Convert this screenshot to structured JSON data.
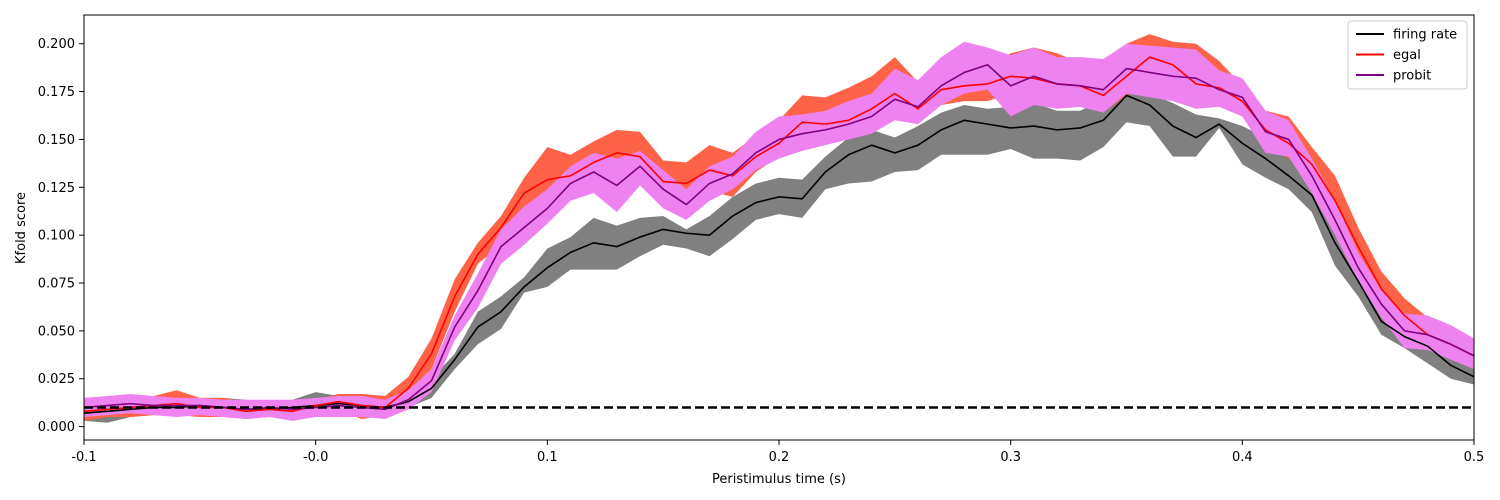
{
  "chart_data": {
    "type": "line",
    "title": "",
    "xlabel": "Peristimulus time (s)",
    "ylabel": "Kfold score",
    "xlim": [
      -0.1,
      0.5
    ],
    "ylim": [
      -0.007,
      0.215
    ],
    "xticks": [
      -0.1,
      0.0,
      0.1,
      0.2,
      0.3,
      0.4,
      0.5
    ],
    "xtick_labels": [
      "-0.1",
      "-0.0",
      "0.1",
      "0.2",
      "0.3",
      "0.4",
      "0.5"
    ],
    "yticks": [
      0.0,
      0.025,
      0.05,
      0.075,
      0.1,
      0.125,
      0.15,
      0.175,
      0.2
    ],
    "ytick_labels": [
      "0.000",
      "0.025",
      "0.050",
      "0.075",
      "0.100",
      "0.125",
      "0.150",
      "0.175",
      "0.200"
    ],
    "grid": false,
    "legend_position": "top-right",
    "baseline": {
      "value": 0.01,
      "color": "#000000",
      "style": "dashed"
    },
    "x": [
      -0.1,
      -0.09,
      -0.08,
      -0.07,
      -0.06,
      -0.05,
      -0.04,
      -0.03,
      -0.02,
      -0.01,
      0.0,
      0.01,
      0.02,
      0.03,
      0.04,
      0.05,
      0.06,
      0.07,
      0.08,
      0.09,
      0.1,
      0.11,
      0.12,
      0.13,
      0.14,
      0.15,
      0.16,
      0.17,
      0.18,
      0.19,
      0.2,
      0.21,
      0.22,
      0.23,
      0.24,
      0.25,
      0.26,
      0.27,
      0.28,
      0.29,
      0.3,
      0.31,
      0.32,
      0.33,
      0.34,
      0.35,
      0.36,
      0.37,
      0.38,
      0.39,
      0.4,
      0.41,
      0.42,
      0.43,
      0.44,
      0.45,
      0.46,
      0.47,
      0.48,
      0.49,
      0.5
    ],
    "series": [
      {
        "name": "firing rate",
        "color": "#000000",
        "band_color": "#808080",
        "values": [
          0.007,
          0.008,
          0.009,
          0.01,
          0.01,
          0.011,
          0.01,
          0.009,
          0.009,
          0.01,
          0.011,
          0.012,
          0.011,
          0.01,
          0.013,
          0.02,
          0.035,
          0.052,
          0.06,
          0.073,
          0.083,
          0.091,
          0.096,
          0.094,
          0.099,
          0.103,
          0.101,
          0.1,
          0.11,
          0.117,
          0.12,
          0.119,
          0.133,
          0.142,
          0.147,
          0.143,
          0.147,
          0.155,
          0.16,
          0.158,
          0.156,
          0.157,
          0.155,
          0.156,
          0.16,
          0.173,
          0.168,
          0.157,
          0.151,
          0.158,
          0.148,
          0.14,
          0.131,
          0.121,
          0.096,
          0.076,
          0.055,
          0.047,
          0.042,
          0.032,
          0.026
        ],
        "lower": [
          0.003,
          0.002,
          0.005,
          0.006,
          0.006,
          0.007,
          0.006,
          0.005,
          0.005,
          0.006,
          0.007,
          0.008,
          0.007,
          0.008,
          0.01,
          0.015,
          0.03,
          0.043,
          0.051,
          0.07,
          0.073,
          0.082,
          0.082,
          0.082,
          0.089,
          0.095,
          0.093,
          0.089,
          0.098,
          0.108,
          0.111,
          0.109,
          0.124,
          0.127,
          0.128,
          0.133,
          0.134,
          0.142,
          0.142,
          0.142,
          0.145,
          0.14,
          0.14,
          0.139,
          0.146,
          0.159,
          0.157,
          0.141,
          0.141,
          0.156,
          0.137,
          0.13,
          0.124,
          0.112,
          0.084,
          0.068,
          0.048,
          0.041,
          0.033,
          0.025,
          0.022
        ],
        "upper": [
          0.012,
          0.013,
          0.013,
          0.013,
          0.013,
          0.015,
          0.015,
          0.014,
          0.013,
          0.014,
          0.018,
          0.016,
          0.015,
          0.013,
          0.016,
          0.025,
          0.038,
          0.06,
          0.068,
          0.078,
          0.093,
          0.099,
          0.109,
          0.105,
          0.109,
          0.11,
          0.103,
          0.11,
          0.12,
          0.127,
          0.13,
          0.129,
          0.141,
          0.151,
          0.155,
          0.151,
          0.157,
          0.164,
          0.168,
          0.166,
          0.167,
          0.169,
          0.165,
          0.165,
          0.171,
          0.176,
          0.174,
          0.169,
          0.163,
          0.161,
          0.157,
          0.151,
          0.141,
          0.133,
          0.104,
          0.082,
          0.063,
          0.052,
          0.049,
          0.039,
          0.032
        ]
      },
      {
        "name": "egal",
        "color": "#ff0000",
        "band_color": "#ff6347",
        "values": [
          0.008,
          0.009,
          0.01,
          0.011,
          0.012,
          0.01,
          0.01,
          0.008,
          0.009,
          0.008,
          0.011,
          0.013,
          0.011,
          0.01,
          0.02,
          0.038,
          0.068,
          0.09,
          0.104,
          0.122,
          0.129,
          0.131,
          0.138,
          0.143,
          0.141,
          0.128,
          0.127,
          0.134,
          0.131,
          0.141,
          0.148,
          0.159,
          0.158,
          0.16,
          0.166,
          0.174,
          0.166,
          0.176,
          0.178,
          0.179,
          0.183,
          0.182,
          0.179,
          0.178,
          0.173,
          0.183,
          0.193,
          0.189,
          0.179,
          0.177,
          0.17,
          0.155,
          0.148,
          0.137,
          0.118,
          0.094,
          0.072,
          0.058,
          0.048,
          0.043,
          0.037
        ],
        "lower": [
          0.003,
          0.005,
          0.005,
          0.006,
          0.006,
          0.005,
          0.005,
          0.004,
          0.005,
          0.004,
          0.007,
          0.008,
          0.004,
          0.006,
          0.015,
          0.03,
          0.06,
          0.085,
          0.095,
          0.11,
          0.116,
          0.12,
          0.13,
          0.133,
          0.13,
          0.12,
          0.118,
          0.123,
          0.12,
          0.133,
          0.141,
          0.15,
          0.148,
          0.15,
          0.156,
          0.162,
          0.158,
          0.168,
          0.17,
          0.17,
          0.174,
          0.172,
          0.169,
          0.17,
          0.164,
          0.173,
          0.182,
          0.178,
          0.169,
          0.168,
          0.162,
          0.148,
          0.14,
          0.129,
          0.11,
          0.086,
          0.064,
          0.05,
          0.041,
          0.036,
          0.03
        ],
        "upper": [
          0.015,
          0.014,
          0.016,
          0.016,
          0.019,
          0.015,
          0.015,
          0.013,
          0.013,
          0.012,
          0.014,
          0.017,
          0.017,
          0.016,
          0.026,
          0.046,
          0.077,
          0.096,
          0.11,
          0.13,
          0.146,
          0.142,
          0.149,
          0.155,
          0.154,
          0.139,
          0.138,
          0.147,
          0.143,
          0.152,
          0.16,
          0.173,
          0.172,
          0.177,
          0.183,
          0.193,
          0.18,
          0.191,
          0.187,
          0.188,
          0.195,
          0.198,
          0.195,
          0.19,
          0.184,
          0.2,
          0.205,
          0.201,
          0.2,
          0.191,
          0.178,
          0.165,
          0.162,
          0.146,
          0.131,
          0.104,
          0.081,
          0.067,
          0.057,
          0.051,
          0.044
        ]
      },
      {
        "name": "probit",
        "color": "#800080",
        "band_color": "#ee82ee",
        "values": [
          0.01,
          0.011,
          0.012,
          0.011,
          0.011,
          0.011,
          0.01,
          0.009,
          0.01,
          0.009,
          0.01,
          0.011,
          0.01,
          0.009,
          0.014,
          0.024,
          0.052,
          0.071,
          0.094,
          0.104,
          0.114,
          0.127,
          0.133,
          0.126,
          0.136,
          0.124,
          0.116,
          0.127,
          0.132,
          0.143,
          0.15,
          0.153,
          0.155,
          0.158,
          0.162,
          0.171,
          0.167,
          0.178,
          0.185,
          0.189,
          0.178,
          0.183,
          0.179,
          0.178,
          0.176,
          0.187,
          0.185,
          0.183,
          0.182,
          0.176,
          0.172,
          0.154,
          0.15,
          0.131,
          0.108,
          0.083,
          0.064,
          0.05,
          0.048,
          0.043,
          0.037
        ],
        "lower": [
          0.005,
          0.006,
          0.007,
          0.006,
          0.005,
          0.006,
          0.005,
          0.004,
          0.005,
          0.003,
          0.005,
          0.005,
          0.005,
          0.004,
          0.009,
          0.018,
          0.045,
          0.062,
          0.085,
          0.095,
          0.106,
          0.118,
          0.122,
          0.112,
          0.126,
          0.114,
          0.108,
          0.118,
          0.124,
          0.134,
          0.14,
          0.144,
          0.147,
          0.15,
          0.153,
          0.16,
          0.158,
          0.168,
          0.174,
          0.176,
          0.162,
          0.168,
          0.166,
          0.167,
          0.164,
          0.174,
          0.172,
          0.17,
          0.166,
          0.167,
          0.162,
          0.143,
          0.141,
          0.122,
          0.1,
          0.076,
          0.057,
          0.041,
          0.04,
          0.035,
          0.03
        ],
        "upper": [
          0.015,
          0.016,
          0.017,
          0.016,
          0.015,
          0.015,
          0.014,
          0.014,
          0.014,
          0.014,
          0.015,
          0.016,
          0.016,
          0.014,
          0.019,
          0.03,
          0.058,
          0.08,
          0.103,
          0.115,
          0.124,
          0.136,
          0.143,
          0.14,
          0.144,
          0.134,
          0.124,
          0.136,
          0.141,
          0.154,
          0.162,
          0.163,
          0.165,
          0.17,
          0.174,
          0.187,
          0.181,
          0.193,
          0.201,
          0.198,
          0.194,
          0.198,
          0.193,
          0.193,
          0.192,
          0.2,
          0.199,
          0.198,
          0.197,
          0.186,
          0.182,
          0.165,
          0.16,
          0.14,
          0.118,
          0.091,
          0.071,
          0.059,
          0.058,
          0.053,
          0.046
        ]
      }
    ]
  }
}
